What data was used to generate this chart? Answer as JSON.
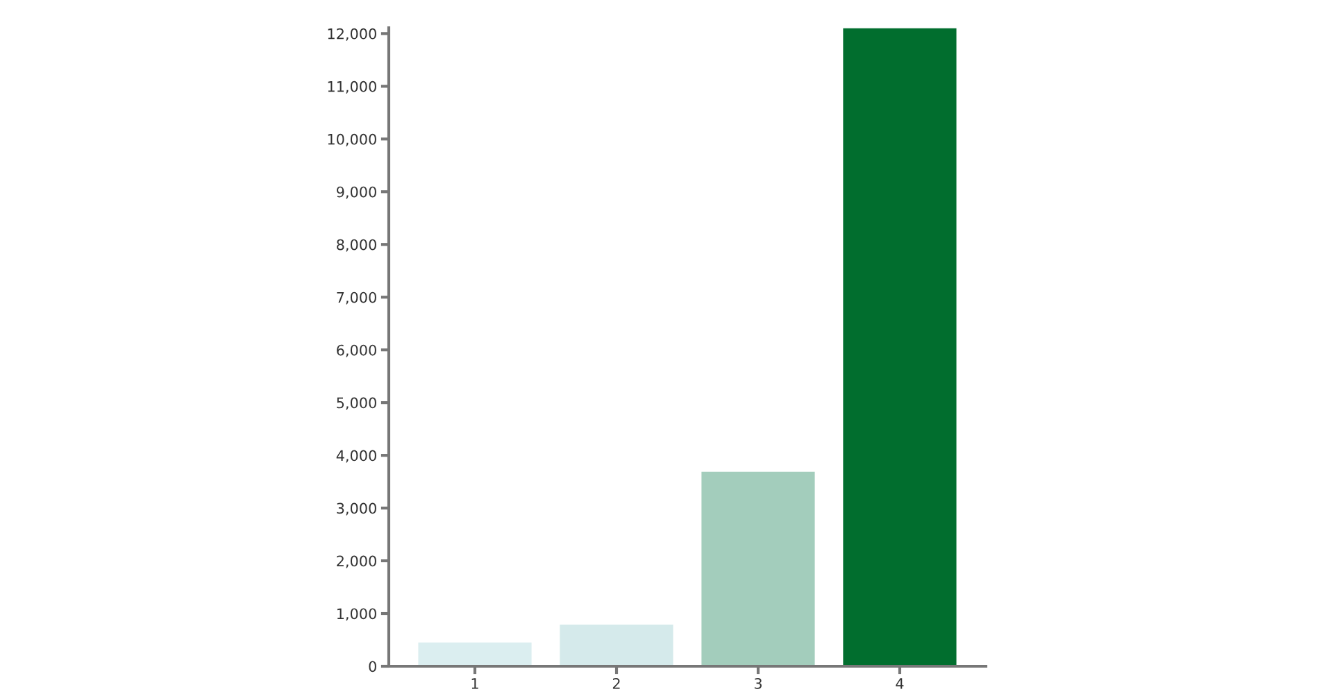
{
  "chart_data": {
    "type": "bar",
    "categories": [
      "1",
      "2",
      "3",
      "4"
    ],
    "values": [
      450,
      790,
      3690,
      12100
    ],
    "colors": [
      "#dbeef0",
      "#d5eaeb",
      "#a3cdbc",
      "#016e2e"
    ],
    "ylim": [
      0,
      12110
    ],
    "yticks": [
      0,
      {
        "value": 1000,
        "label": "1,000"
      },
      {
        "value": 2000,
        "label": "2,000"
      },
      {
        "value": 3000,
        "label": "3,000"
      },
      {
        "value": 4000,
        "label": "4,000"
      },
      {
        "value": 5000,
        "label": "5,000"
      },
      {
        "value": 6000,
        "label": "6,000"
      },
      {
        "value": 7000,
        "label": "7,000"
      },
      {
        "value": 8000,
        "label": "8,000"
      },
      {
        "value": 9000,
        "label": "9,000"
      },
      {
        "value": 10000,
        "label": "10,000"
      },
      {
        "value": 11000,
        "label": "11,000"
      },
      {
        "value": 12000,
        "label": "12,000"
      }
    ],
    "grid": false,
    "legend": false
  }
}
